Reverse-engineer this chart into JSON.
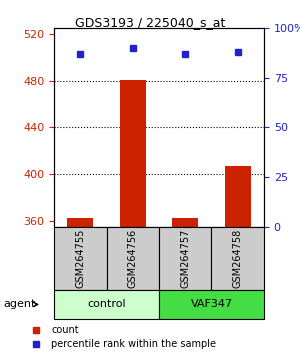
{
  "title": "GDS3193 / 225040_s_at",
  "samples": [
    "GSM264755",
    "GSM264756",
    "GSM264757",
    "GSM264758"
  ],
  "groups": [
    "control",
    "control",
    "VAF347",
    "VAF347"
  ],
  "group_labels": [
    "control",
    "VAF347"
  ],
  "group_colors": [
    "#ccffcc",
    "#44dd44"
  ],
  "counts": [
    362,
    481,
    362,
    407
  ],
  "percentile_ranks": [
    87,
    90,
    87,
    88
  ],
  "ylim_left": [
    355,
    525
  ],
  "ylim_right": [
    0,
    100
  ],
  "yticks_left": [
    360,
    400,
    440,
    480,
    520
  ],
  "yticks_right": [
    0,
    25,
    50,
    75,
    100
  ],
  "ytick_labels_right": [
    "0",
    "25",
    "50",
    "75",
    "100%"
  ],
  "bar_color": "#cc2200",
  "dot_color": "#2222cc",
  "grid_color": "#000000",
  "bg_color": "#ffffff",
  "sample_bg": "#cccccc",
  "left_tick_color": "#cc2200",
  "right_tick_color": "#2222cc"
}
